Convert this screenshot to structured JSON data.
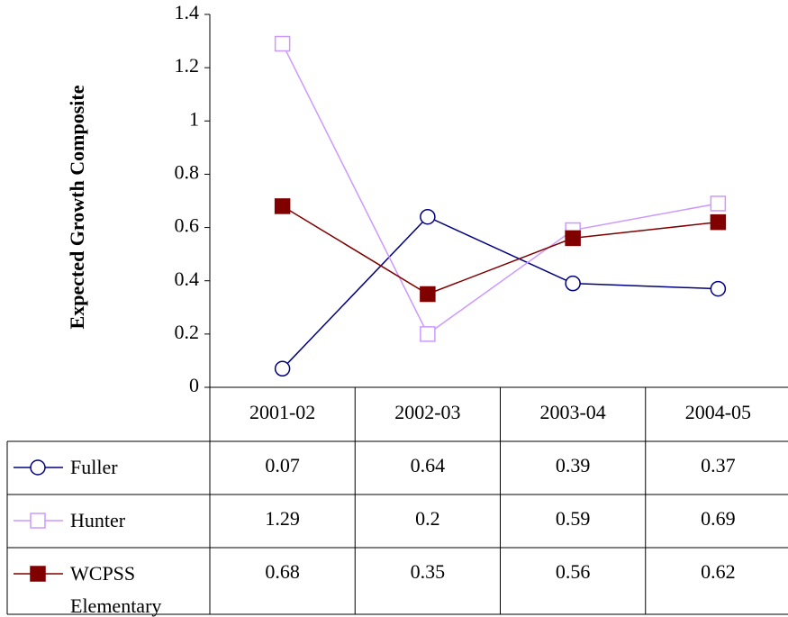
{
  "chart_data": {
    "type": "line",
    "y_label": "Expected Growth Composite",
    "categories": [
      "2001-02",
      "2002-03",
      "2003-04",
      "2004-05"
    ],
    "series": [
      {
        "name": "Fuller",
        "color": "#000080",
        "marker": "circle",
        "marker_filled": false,
        "values": [
          0.07,
          0.64,
          0.39,
          0.37
        ]
      },
      {
        "name": "Hunter",
        "color": "#cc99ff",
        "marker": "square",
        "marker_filled": false,
        "values": [
          1.29,
          0.2,
          0.59,
          0.69
        ]
      },
      {
        "name": "WCPSS Elementary",
        "color": "#800000",
        "marker": "square",
        "marker_filled": true,
        "values": [
          0.68,
          0.35,
          0.56,
          0.62
        ]
      }
    ],
    "ylim": [
      0,
      1.4
    ],
    "yticks": [
      0,
      0.2,
      0.4,
      0.6,
      0.8,
      1,
      1.2,
      1.4
    ],
    "grid": false,
    "data_table": true
  }
}
